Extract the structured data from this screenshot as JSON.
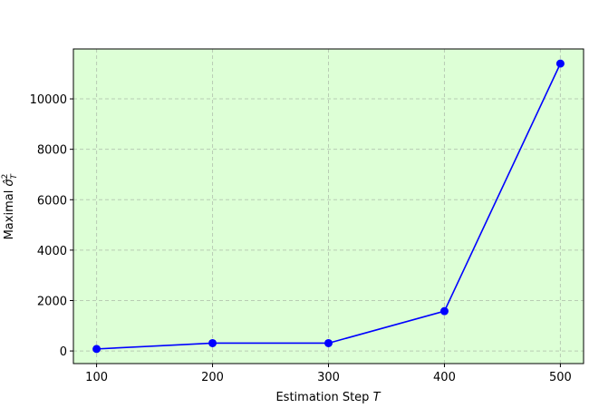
{
  "chart_data": {
    "type": "line",
    "xlabel": {
      "text": "Estimation Step ",
      "var": "T"
    },
    "ylabel": {
      "text": "Maximal ",
      "symbol": "σ̂",
      "sup": "2",
      "sub": "T"
    },
    "x": [
      100,
      200,
      300,
      400,
      500
    ],
    "series": [
      {
        "color": "#0000ff",
        "values": [
          80,
          310,
          310,
          1580,
          11400
        ]
      }
    ],
    "xlim": [
      80,
      520
    ],
    "xticks": [
      100,
      200,
      300,
      400,
      500
    ],
    "ylim": [
      -500,
      11980
    ],
    "yticks": [
      0,
      2000,
      4000,
      6000,
      8000,
      10000
    ],
    "grid": true,
    "background": "#ddffd6"
  }
}
